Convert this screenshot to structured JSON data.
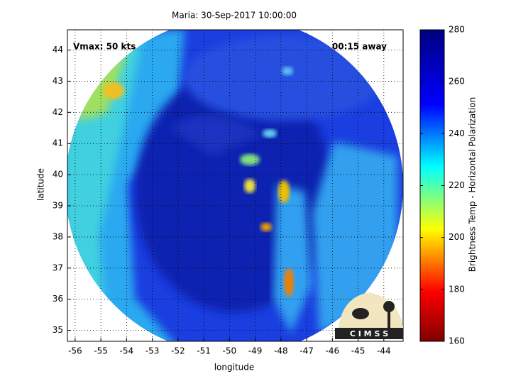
{
  "chart_data": {
    "type": "image",
    "title": "Maria: 30-Sep-2017 10:00:00",
    "xlabel": "longitude",
    "ylabel": "latitude",
    "xlim": [
      -56.3,
      -43.25
    ],
    "xticks": [
      -56,
      -55,
      -54,
      -53,
      -52,
      -51,
      -50,
      -49,
      -48,
      -47,
      -46,
      -45,
      -44
    ],
    "ylim": [
      34.65,
      44.65
    ],
    "yticks": [
      35,
      36,
      37,
      38,
      39,
      40,
      41,
      42,
      43,
      44
    ],
    "grid": true,
    "colorbar": {
      "label": "Brightness Temp - Horizontal Polarization",
      "colormap": "jet",
      "clim": [
        160,
        280
      ],
      "ticks": [
        160,
        180,
        200,
        220,
        240,
        260,
        280
      ]
    },
    "annotations": [
      "Vmax: 50 kts",
      "00:15 away"
    ],
    "logo": "C I M S S"
  }
}
